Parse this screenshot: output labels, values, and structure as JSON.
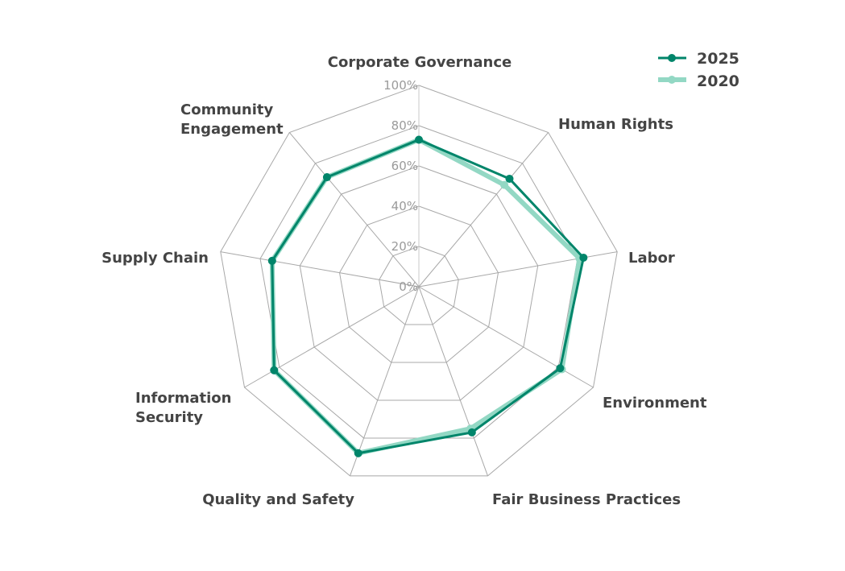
{
  "chart_data": {
    "type": "radar",
    "title": "",
    "categories": [
      "Corporate Governance",
      "Human Rights",
      "Labor",
      "Environment",
      "Fair Business Practices",
      "Quality and Safety",
      "Information Security",
      "Supply Chain",
      "Community Engagement"
    ],
    "category_label_lines": [
      [
        "Corporate Governance"
      ],
      [
        "Human Rights"
      ],
      [
        "Labor"
      ],
      [
        "Environment"
      ],
      [
        "Fair Business Practices"
      ],
      [
        "Quality and Safety"
      ],
      [
        "Information",
        "Security"
      ],
      [
        "Supply Chain"
      ],
      [
        "Community",
        "Engagement"
      ]
    ],
    "series": [
      {
        "name": "2020",
        "color": "#93d8c4",
        "values": [
          73,
          66,
          81,
          82,
          75,
          88,
          83,
          74,
          71
        ]
      },
      {
        "name": "2025",
        "color": "#00856a",
        "values": [
          73,
          70,
          83,
          81,
          77,
          88,
          83,
          74,
          71
        ]
      }
    ],
    "radial_ticks": [
      "0%",
      "20%",
      "40%",
      "60%",
      "80%",
      "100%"
    ],
    "range": [
      0,
      100
    ],
    "grid": true,
    "legend_position": "top-right"
  },
  "legend": {
    "items": [
      {
        "label": "2025",
        "color": "#00856a"
      },
      {
        "label": "2020",
        "color": "#93d8c4"
      }
    ]
  }
}
